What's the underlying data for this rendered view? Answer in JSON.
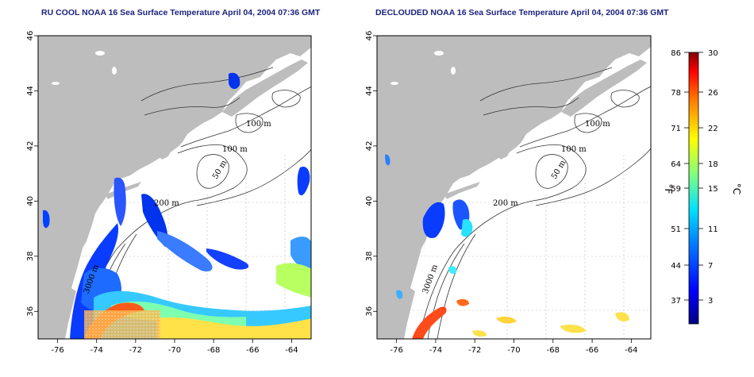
{
  "titles": {
    "left": "RU COOL NOAA 16 Sea Surface Temperature April 04, 2004 07:36 GMT",
    "right": "DECLOUDED NOAA 16 Sea Surface Temperature April 04, 2004 07:36 GMT"
  },
  "axes": {
    "lon_ticks": [
      "-76",
      "-74",
      "-72",
      "-70",
      "-68",
      "-66",
      "-64"
    ],
    "lat_ticks": [
      "36",
      "38",
      "40",
      "42",
      "44",
      "46"
    ]
  },
  "contours": {
    "label_100": "100 m",
    "label_50": "50 m",
    "label_200": "200 m",
    "label_3000": "3000 m"
  },
  "colorbar": {
    "f_ticks": [
      "86",
      "78",
      "71",
      "64",
      "59",
      "51",
      "44",
      "37"
    ],
    "c_ticks": [
      "30",
      "26",
      "22",
      "18",
      "15",
      "11",
      "7",
      "3"
    ],
    "unit_f": "°F",
    "unit_c": "°C"
  },
  "colors": {
    "land": "#bdbdbd",
    "ocean": "#ffffff",
    "title": "#1a237e",
    "scale": [
      "#000080",
      "#0000ff",
      "#0080ff",
      "#00ffff",
      "#80ff80",
      "#ffff00",
      "#ff8000",
      "#ff0000",
      "#800000"
    ]
  }
}
